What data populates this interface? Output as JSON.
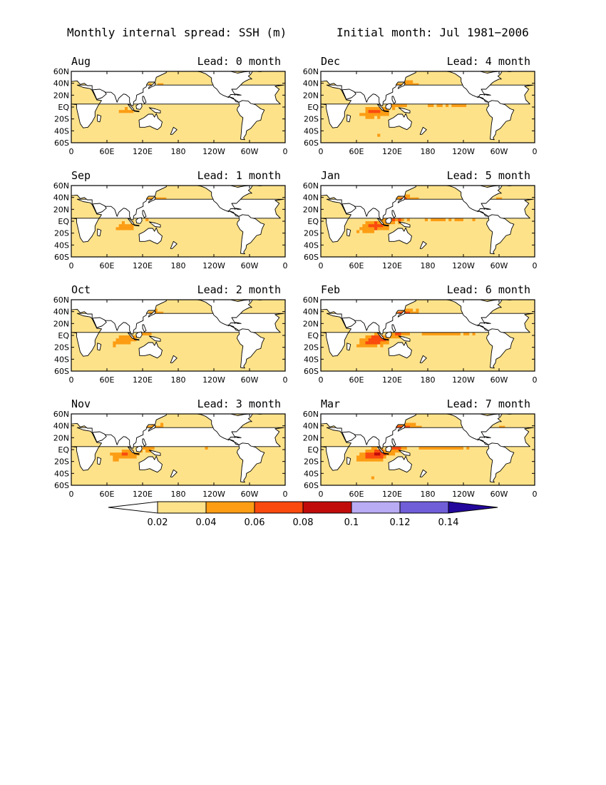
{
  "title_left": "Monthly internal spread: SSH (m)",
  "title_right": "Initial month: Jul 1981−2006",
  "lat_ticks": [
    "60N",
    "40N",
    "20N",
    "EQ",
    "20S",
    "40S",
    "60S"
  ],
  "lon_ticks": [
    "0",
    "60E",
    "120E",
    "180",
    "120W",
    "60W",
    "0"
  ],
  "panels": [
    {
      "month": "Aug",
      "lead": "Lead: 0 month",
      "level": 0.0
    },
    {
      "month": "Dec",
      "lead": "Lead: 4 month",
      "level": 0.57
    },
    {
      "month": "Sep",
      "lead": "Lead: 1 month",
      "level": 0.14
    },
    {
      "month": "Jan",
      "lead": "Lead: 5 month",
      "level": 0.71
    },
    {
      "month": "Oct",
      "lead": "Lead: 2 month",
      "level": 0.29
    },
    {
      "month": "Feb",
      "lead": "Lead: 6 month",
      "level": 0.86
    },
    {
      "month": "Nov",
      "lead": "Lead: 3 month",
      "level": 0.43
    },
    {
      "month": "Mar",
      "lead": "Lead: 7 month",
      "level": 1.0
    }
  ],
  "colorbar": {
    "labels": [
      "0.02",
      "0.04",
      "0.06",
      "0.08",
      "0.1",
      "0.12",
      "0.14"
    ],
    "colors": [
      "#ffffff",
      "#fee28a",
      "#fc9d14",
      "#fa4a0e",
      "#c10b0b",
      "#b9abf4",
      "#6f5ed8",
      "#23069b"
    ]
  },
  "colors": {
    "land": "#ffffff",
    "outline": "#000000"
  }
}
